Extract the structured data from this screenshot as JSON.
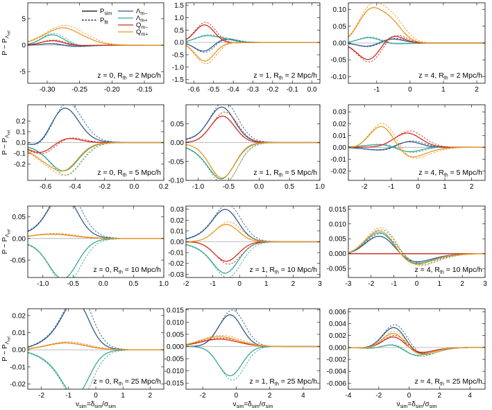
{
  "colors": {
    "Lm_minus": "#2e5a8a",
    "Lm_plus": "#3aa79a",
    "Qm_minus": "#cf2a1c",
    "Qm_plus": "#e8971e",
    "axis": "#000000",
    "zero_line": "#a8a8a8"
  },
  "legend": {
    "entries": [
      {
        "key": "sim",
        "label": "P",
        "sub": "sim",
        "style": "solid"
      },
      {
        "key": "fit",
        "label": "P",
        "sub": "fit",
        "style": "dashed"
      },
      {
        "key": "Lm_minus",
        "label": "Λ",
        "sub": "m−"
      },
      {
        "key": "Lm_plus",
        "label": "Λ",
        "sub": "m+"
      },
      {
        "key": "Qm_minus",
        "label": "Q",
        "sub": "m−"
      },
      {
        "key": "Qm_plus",
        "label": "Q",
        "sub": "m+"
      }
    ]
  },
  "ylabel": {
    "main": "P − P",
    "sub": "Λ",
    "subsub": "ref"
  },
  "xlabel": {
    "main": "ν",
    "sub1": "sim",
    "mid": "=δ",
    "sub2": "sim",
    "slash": "/σ",
    "sub3": "sim"
  },
  "chart_data": [
    {
      "type": "line",
      "row": 0,
      "col": 0,
      "annotation": {
        "z": "z = 0, R",
        "sub": "th",
        "rest": " = 2 Mpc/h"
      },
      "xlim": [
        -0.33,
        -0.12
      ],
      "ylim": [
        -7.2,
        8
      ],
      "xticks": [
        -0.3,
        -0.25,
        -0.2,
        -0.15
      ],
      "xtick_labels": [
        "-0.30",
        "-0.25",
        "-0.20",
        "-0.15"
      ],
      "yticks": [
        -5,
        0,
        5
      ],
      "ytick_labels": [
        "-5",
        "0",
        "5"
      ],
      "x0": -0.275,
      "w": 0.018,
      "series": [
        {
          "name": "Λm−",
          "key": "Lm_minus",
          "amps": [
            0.6,
            0.0,
            -0.4
          ]
        },
        {
          "name": "Λm+",
          "key": "Lm_plus",
          "amps": [
            2.2,
            0.0,
            -0.3
          ]
        },
        {
          "name": "Qm−",
          "key": "Qm_minus",
          "amps": [
            1.0,
            0.0,
            -0.2
          ]
        },
        {
          "name": "Qm+",
          "key": "Qm_plus",
          "amps": [
            -0.5,
            -0.6,
            4.0
          ]
        }
      ]
    },
    {
      "type": "line",
      "row": 0,
      "col": 1,
      "annotation": {
        "z": "z = 1, R",
        "sub": "th",
        "rest": " = 2 Mpc/h"
      },
      "xlim": [
        -0.64,
        0.04
      ],
      "ylim": [
        -1.65,
        1.6
      ],
      "xticks": [
        -0.6,
        -0.5,
        -0.4,
        -0.3,
        -0.2,
        -0.1,
        0.0
      ],
      "xtick_labels": [
        "-0.6",
        "-0.5",
        "-0.4",
        "-0.3",
        "-0.2",
        "-0.1",
        "0.0"
      ],
      "yticks": [
        -1.5,
        -1.0,
        -0.5,
        0.0,
        0.5,
        1.0,
        1.5
      ],
      "ytick_labels": [
        "-1.5",
        "-1.0",
        "-0.5",
        "0.0",
        "0.5",
        "1.0",
        "1.5"
      ],
      "x0": -0.5,
      "w": 0.05,
      "series": [
        {
          "name": "Λm−",
          "key": "Lm_minus",
          "amps": [
            -0.45,
            0.1,
            0.1
          ]
        },
        {
          "name": "Λm+",
          "key": "Lm_plus",
          "amps": [
            0.2,
            0.1,
            0.05
          ]
        },
        {
          "name": "Qm−",
          "key": "Qm_minus",
          "amps": [
            0.75,
            0.0,
            -0.05
          ]
        },
        {
          "name": "Qm+",
          "key": "Qm_plus",
          "amps": [
            -0.75,
            0.0,
            0.0
          ]
        }
      ]
    },
    {
      "type": "line",
      "row": 0,
      "col": 2,
      "annotation": {
        "z": "z = 4, R",
        "sub": "th",
        "rest": " = 2 Mpc/h"
      },
      "xlim": [
        -1.85,
        2.25
      ],
      "ylim": [
        -0.12,
        0.12
      ],
      "xticks": [
        -1,
        0,
        1,
        2
      ],
      "xtick_labels": [
        "-1",
        "0",
        "1",
        "2"
      ],
      "yticks": [
        -0.1,
        -0.05,
        0.0,
        0.05,
        0.1
      ],
      "ytick_labels": [
        "-0.10",
        "-0.05",
        "0.00",
        "0.05",
        "0.10"
      ],
      "x0": -0.9,
      "w": 0.35,
      "series": [
        {
          "name": "Λm−",
          "key": "Lm_minus",
          "amps": [
            -0.015,
            0.01,
            0.005
          ]
        },
        {
          "name": "Λm+",
          "key": "Lm_plus",
          "amps": [
            0.02,
            0.0,
            -0.005
          ]
        },
        {
          "name": "Qm−",
          "key": "Qm_minus",
          "amps": [
            -0.05,
            0.03,
            -0.005
          ]
        },
        {
          "name": "Qm+",
          "key": "Qm_plus",
          "amps": [
            0.09,
            0.06,
            0.0
          ]
        }
      ]
    },
    {
      "type": "line",
      "row": 1,
      "col": 0,
      "annotation": {
        "z": "z = 0, R",
        "sub": "th",
        "rest": " = 5 Mpc/h"
      },
      "xlim": [
        -0.72,
        0.2
      ],
      "ylim": [
        -0.35,
        0.35
      ],
      "xticks": [
        -0.6,
        -0.4,
        -0.2,
        0.0,
        0.2
      ],
      "xtick_labels": [
        "-0.6",
        "-0.4",
        "-0.2",
        "0.0",
        "0.2"
      ],
      "yticks": [
        -0.2,
        -0.1,
        0.0,
        0.1,
        0.2
      ],
      "ytick_labels": [
        "-0.2",
        "-0.1",
        "0.0",
        "0.1",
        "0.2"
      ],
      "x0": -0.55,
      "w": 0.09,
      "series": [
        {
          "name": "Λm−",
          "key": "Lm_minus",
          "amps": [
            -0.15,
            0.22,
            0.15
          ]
        },
        {
          "name": "Λm+",
          "key": "Lm_plus",
          "amps": [
            0.02,
            -0.18,
            -0.1
          ]
        },
        {
          "name": "Qm−",
          "key": "Qm_minus",
          "amps": [
            -0.1,
            0.05,
            0.0
          ]
        },
        {
          "name": "Qm+",
          "key": "Qm_plus",
          "amps": [
            -0.08,
            -0.2,
            -0.05
          ]
        }
      ]
    },
    {
      "type": "line",
      "row": 1,
      "col": 1,
      "annotation": {
        "z": "z = 1, R",
        "sub": "th",
        "rest": " = 5 Mpc/h"
      },
      "xlim": [
        -1.2,
        1.0
      ],
      "ylim": [
        -0.1,
        0.1
      ],
      "xticks": [
        -1.0,
        -0.5,
        0.0,
        0.5,
        1.0
      ],
      "xtick_labels": [
        "-1.0",
        "-0.5",
        "0.0",
        "0.5",
        "1.0"
      ],
      "yticks": [
        -0.1,
        -0.05,
        0.0,
        0.05
      ],
      "ytick_labels": [
        "-0.10",
        "-0.05",
        "0.00",
        "0.05"
      ],
      "x0": -0.78,
      "w": 0.2,
      "series": [
        {
          "name": "Λm−",
          "key": "Lm_minus",
          "amps": [
            -0.01,
            0.07,
            0.03
          ]
        },
        {
          "name": "Λm+",
          "key": "Lm_plus",
          "amps": [
            0.0,
            -0.07,
            -0.03
          ]
        },
        {
          "name": "Qm−",
          "key": "Qm_minus",
          "amps": [
            0.0,
            0.07,
            0.0
          ]
        },
        {
          "name": "Qm+",
          "key": "Qm_plus",
          "amps": [
            0.0,
            -0.085,
            -0.01
          ]
        }
      ]
    },
    {
      "type": "line",
      "row": 1,
      "col": 2,
      "annotation": {
        "z": "z = 4, R",
        "sub": "th",
        "rest": " = 5 Mpc/h"
      },
      "xlim": [
        -2.6,
        2.5
      ],
      "ylim": [
        -0.028,
        0.036
      ],
      "xticks": [
        -2,
        -1,
        0,
        1,
        2
      ],
      "xtick_labels": [
        "-2",
        "-1",
        "0",
        "1",
        "2"
      ],
      "yticks": [
        -0.02,
        -0.01,
        0.0,
        0.01,
        0.02,
        0.03
      ],
      "ytick_labels": [
        "-0.02",
        "-0.01",
        "0.00",
        "0.01",
        "0.02",
        "0.03"
      ],
      "x0": -0.85,
      "w": 0.5,
      "series": [
        {
          "name": "Λm−",
          "key": "Lm_minus",
          "amps": [
            0.0,
            0.008,
            -0.004
          ]
        },
        {
          "name": "Λm+",
          "key": "Lm_plus",
          "amps": [
            0.0,
            -0.007,
            0.004
          ]
        },
        {
          "name": "Qm−",
          "key": "Qm_minus",
          "amps": [
            0.0,
            0.012,
            0.0
          ]
        },
        {
          "name": "Qm+",
          "key": "Qm_plus",
          "amps": [
            0.03,
            0.0,
            -0.015
          ]
        }
      ]
    },
    {
      "type": "line",
      "row": 2,
      "col": 0,
      "annotation": {
        "z": "z = 0, R",
        "sub": "th",
        "rest": " = 10 Mpc/h"
      },
      "xlim": [
        -1.25,
        1.0
      ],
      "ylim": [
        -0.09,
        0.075
      ],
      "xticks": [
        -1.0,
        -0.5,
        0.0,
        0.5,
        1.0
      ],
      "xtick_labels": [
        "-1.0",
        "-0.5",
        "0.0",
        "0.5",
        "1.0"
      ],
      "yticks": [
        -0.05,
        0.0,
        0.05
      ],
      "ytick_labels": [
        "-0.05",
        "0.00",
        "0.05"
      ],
      "x0": -0.85,
      "w": 0.22,
      "series": [
        {
          "name": "Λm−",
          "key": "Lm_minus",
          "amps": [
            -0.01,
            0.07,
            0.04
          ]
        },
        {
          "name": "Λm+",
          "key": "Lm_plus",
          "amps": [
            0.01,
            -0.065,
            -0.035
          ]
        },
        {
          "name": "Qm−",
          "key": "Qm_minus",
          "amps": [
            0.0,
            0.0,
            0.01
          ]
        },
        {
          "name": "Qm+",
          "key": "Qm_plus",
          "amps": [
            0.0,
            0.0,
            0.01
          ]
        }
      ]
    },
    {
      "type": "line",
      "row": 2,
      "col": 1,
      "annotation": {
        "z": "z = 1, R",
        "sub": "th",
        "rest": " = 10 Mpc/h"
      },
      "xlim": [
        -2.0,
        3.0
      ],
      "ylim": [
        -0.033,
        0.033
      ],
      "xticks": [
        -2,
        -1,
        0,
        1,
        2,
        3
      ],
      "xtick_labels": [
        "-2",
        "-1",
        "0",
        "1",
        "2",
        "3"
      ],
      "yticks": [
        -0.03,
        -0.02,
        -0.01,
        0.0,
        0.01,
        0.02,
        0.03
      ],
      "ytick_labels": [
        "-0.03",
        "-0.02",
        "-0.01",
        "0.00",
        "0.01",
        "0.02",
        "0.03"
      ],
      "x0": -0.9,
      "w": 0.45,
      "series": [
        {
          "name": "Λm−",
          "key": "Lm_minus",
          "amps": [
            0.0,
            0.023,
            0.008
          ]
        },
        {
          "name": "Λm+",
          "key": "Lm_plus",
          "amps": [
            0.0,
            -0.022,
            -0.008
          ]
        },
        {
          "name": "Qm−",
          "key": "Qm_minus",
          "amps": [
            0.0,
            -0.018,
            0.0
          ]
        },
        {
          "name": "Qm+",
          "key": "Qm_plus",
          "amps": [
            0.0,
            0.016,
            0.0
          ]
        }
      ]
    },
    {
      "type": "line",
      "row": 2,
      "col": 2,
      "annotation": {
        "z": "z = 4, R",
        "sub": "th",
        "rest": " = 10 Mpc/h"
      },
      "xlim": [
        -3.0,
        3.0
      ],
      "ylim": [
        -0.008,
        0.016
      ],
      "xticks": [
        -3,
        -2,
        -1,
        0,
        1,
        2,
        3
      ],
      "xtick_labels": [
        "-3",
        "-2",
        "-1",
        "0",
        "1",
        "2",
        "3"
      ],
      "yticks": [
        -0.005,
        0.0,
        0.005,
        0.01,
        0.015
      ],
      "ytick_labels": [
        "-0.005",
        "0.000",
        "0.005",
        "0.010",
        "0.015"
      ],
      "x0": -0.9,
      "w": 0.7,
      "series": [
        {
          "name": "Λm−",
          "key": "Lm_minus",
          "amps": [
            0.01,
            0.0,
            -0.005
          ]
        },
        {
          "name": "Λm+",
          "key": "Lm_plus",
          "amps": [
            0.012,
            0.0,
            -0.006
          ]
        },
        {
          "name": "Qm−",
          "key": "Qm_minus",
          "amps": [
            0.0,
            0.0,
            0.0
          ]
        },
        {
          "name": "Qm+",
          "key": "Qm_plus",
          "amps": [
            0.013,
            0.0,
            -0.0065
          ]
        }
      ]
    },
    {
      "type": "line",
      "row": 3,
      "col": 0,
      "annotation": {
        "z": "z = 0, R",
        "sub": "th",
        "rest": " = 25 Mpc/h"
      },
      "xlim": [
        -2.5,
        2.5
      ],
      "ylim": [
        -0.023,
        0.024
      ],
      "xticks": [
        -2,
        -1,
        0,
        1,
        2
      ],
      "xtick_labels": [
        "-2",
        "-1",
        "0",
        "1",
        "2"
      ],
      "yticks": [
        -0.02,
        -0.01,
        0.0,
        0.01,
        0.02
      ],
      "ytick_labels": [
        "-0.02",
        "-0.01",
        "0.00",
        "0.01",
        "0.02"
      ],
      "x0": -1.1,
      "w": 0.45,
      "series": [
        {
          "name": "Λm−",
          "key": "Lm_minus",
          "amps": [
            0.0,
            0.02,
            0.01
          ]
        },
        {
          "name": "Λm+",
          "key": "Lm_plus",
          "amps": [
            0.0,
            -0.018,
            -0.01
          ]
        },
        {
          "name": "Qm−",
          "key": "Qm_minus",
          "amps": [
            0.0,
            0.0,
            0.004
          ]
        },
        {
          "name": "Qm+",
          "key": "Qm_plus",
          "amps": [
            0.0,
            0.0,
            0.004
          ]
        }
      ]
    },
    {
      "type": "line",
      "row": 3,
      "col": 1,
      "annotation": {
        "z": "z = 1, R",
        "sub": "th",
        "rest": " = 25 Mpc/h"
      },
      "xlim": [
        -3.0,
        5.0
      ],
      "ylim": [
        -0.0175,
        0.0155
      ],
      "xticks": [
        -2,
        0,
        2,
        4
      ],
      "xtick_labels": [
        "-2",
        "0",
        "2",
        "4"
      ],
      "yticks": [
        -0.015,
        -0.01,
        -0.005,
        0.0,
        0.005,
        0.01,
        0.015
      ],
      "ytick_labels": [
        "-0.015",
        "-0.010",
        "-0.005",
        "0.000",
        "0.005",
        "0.010",
        "0.015"
      ],
      "x0": -1.0,
      "w": 0.7,
      "series": [
        {
          "name": "Λm−",
          "key": "Lm_minus",
          "amps": [
            0.0,
            0.013,
            0.0
          ]
        },
        {
          "name": "Λm+",
          "key": "Lm_plus",
          "amps": [
            0.0,
            -0.012,
            0.0
          ]
        },
        {
          "name": "Qm−",
          "key": "Qm_minus",
          "amps": [
            0.0,
            0.0,
            0.003
          ]
        },
        {
          "name": "Qm+",
          "key": "Qm_plus",
          "amps": [
            0.0,
            0.0,
            0.004
          ]
        }
      ]
    },
    {
      "type": "line",
      "row": 3,
      "col": 2,
      "annotation": {
        "z": "z = 4, R",
        "sub": "th",
        "rest": " = 25 Mpc/h"
      },
      "xlim": [
        -4.0,
        5.0
      ],
      "ylim": [
        -0.007,
        0.0065
      ],
      "xticks": [
        -4,
        -2,
        0,
        2,
        4
      ],
      "xtick_labels": [
        "-4",
        "-2",
        "0",
        "2",
        "4"
      ],
      "yticks": [
        -0.006,
        -0.004,
        -0.002,
        0.0,
        0.002,
        0.004,
        0.006
      ],
      "ytick_labels": [
        "-0.006",
        "-0.004",
        "-0.002",
        "0.000",
        "0.002",
        "0.004",
        "0.006"
      ],
      "x0": -0.2,
      "w": 0.8,
      "series": [
        {
          "name": "Λm−",
          "key": "Lm_minus",
          "amps": [
            0.005,
            0.0,
            -0.002
          ]
        },
        {
          "name": "Λm+",
          "key": "Lm_plus",
          "amps": [
            0.002,
            0.0,
            -0.002
          ]
        },
        {
          "name": "Qm−",
          "key": "Qm_minus",
          "amps": [
            0.003,
            0.0,
            -0.0015
          ]
        },
        {
          "name": "Qm+",
          "key": "Qm_plus",
          "amps": [
            0.004,
            0.0,
            -0.002
          ]
        }
      ]
    }
  ]
}
